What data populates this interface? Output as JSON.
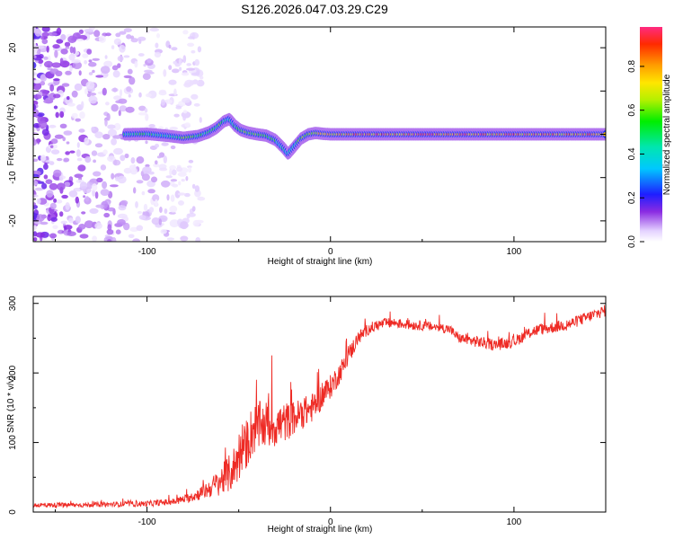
{
  "title": "S126.2026.047.03.29.C29",
  "colors": {
    "snr_line": "#ee2a24",
    "axis": "#000000",
    "background": "#ffffff"
  },
  "chart_data": [
    {
      "type": "heatmap",
      "title": "",
      "xlabel": "Height of straight line (km)",
      "ylabel": "Frequency (Hz)",
      "xlim": [
        -162,
        150
      ],
      "ylim": [
        -24.8,
        24.8
      ],
      "xticks": [
        -100,
        0,
        100
      ],
      "xticklabels": [
        "-100",
        "0",
        "100"
      ],
      "yticks": [
        -20,
        -10,
        0,
        10,
        20
      ],
      "yticklabels": [
        "-20",
        "-10",
        "0",
        "10",
        "20"
      ],
      "grid": false,
      "colorbar": {
        "label": "Normalized spectral amplitude",
        "range": [
          0.0,
          0.98
        ],
        "ticks": [
          0.0,
          0.2,
          0.4,
          0.6,
          0.8
        ],
        "ticklabels": [
          "0.0",
          "0.2",
          "0.4",
          "0.6",
          "0.8"
        ],
        "colormap": "rainbow"
      },
      "ridge": {
        "description": "main spectral ridge frequency (Hz) vs height (km)",
        "x": [
          -112,
          -100,
          -90,
          -80,
          -72,
          -66,
          -62,
          -58,
          -55,
          -52,
          -49,
          -45,
          -40,
          -35,
          -30,
          -26,
          -23,
          -20,
          -16,
          -12,
          -8,
          -4,
          0,
          10,
          20,
          40,
          60,
          80,
          100,
          120,
          150
        ],
        "y": [
          0.0,
          0.1,
          -0.3,
          -0.8,
          -0.4,
          0.5,
          1.5,
          3.0,
          3.5,
          2.0,
          1.0,
          0.4,
          0.0,
          -0.3,
          -1.3,
          -3.0,
          -4.5,
          -3.0,
          -1.0,
          0.0,
          0.3,
          0.1,
          0.0,
          0.0,
          0.0,
          0.0,
          0.0,
          0.0,
          0.0,
          0.0,
          0.0
        ],
        "amplitude": [
          0.5,
          0.55,
          0.45,
          0.6,
          0.55,
          0.5,
          0.6,
          0.55,
          0.45,
          0.5,
          0.55,
          0.6,
          0.65,
          0.6,
          0.55,
          0.45,
          0.4,
          0.5,
          0.6,
          0.7,
          0.75,
          0.75,
          0.8,
          0.85,
          0.9,
          0.9,
          0.92,
          0.9,
          0.9,
          0.88,
          0.85
        ]
      },
      "noise_region": {
        "x_range": [
          -162,
          -70
        ],
        "amplitude_range": [
          0.02,
          0.2
        ]
      }
    },
    {
      "type": "line",
      "title": "",
      "xlabel": "Height of straight line (km)",
      "ylabel": "SNR (10 * v/v)",
      "xlim": [
        -162,
        150
      ],
      "ylim": [
        0,
        310
      ],
      "xticks": [
        -100,
        0,
        100
      ],
      "xticklabels": [
        "-100",
        "0",
        "100"
      ],
      "yticks": [
        0,
        100,
        200,
        300
      ],
      "yticklabels": [
        "0",
        "100",
        "200",
        "300"
      ],
      "grid": false,
      "series": [
        {
          "name": "SNR",
          "x": [
            -162,
            -140,
            -120,
            -100,
            -85,
            -75,
            -65,
            -55,
            -48,
            -42,
            -35,
            -28,
            -20,
            -10,
            0,
            5,
            10,
            15,
            20,
            25,
            30,
            35,
            40,
            50,
            60,
            65,
            70,
            80,
            90,
            100,
            110,
            120,
            130,
            140,
            150
          ],
          "values": [
            10,
            10,
            11,
            12,
            15,
            22,
            35,
            55,
            85,
            120,
            125,
            125,
            135,
            150,
            180,
            200,
            225,
            250,
            262,
            268,
            272,
            272,
            270,
            268,
            265,
            263,
            250,
            245,
            240,
            245,
            260,
            265,
            270,
            280,
            290
          ],
          "noise_amplitude": [
            5,
            5,
            5,
            6,
            7,
            10,
            20,
            40,
            50,
            55,
            50,
            45,
            35,
            30,
            25,
            22,
            20,
            15,
            12,
            12,
            10,
            10,
            10,
            10,
            10,
            10,
            10,
            12,
            12,
            12,
            12,
            12,
            12,
            12,
            12
          ]
        }
      ]
    }
  ]
}
